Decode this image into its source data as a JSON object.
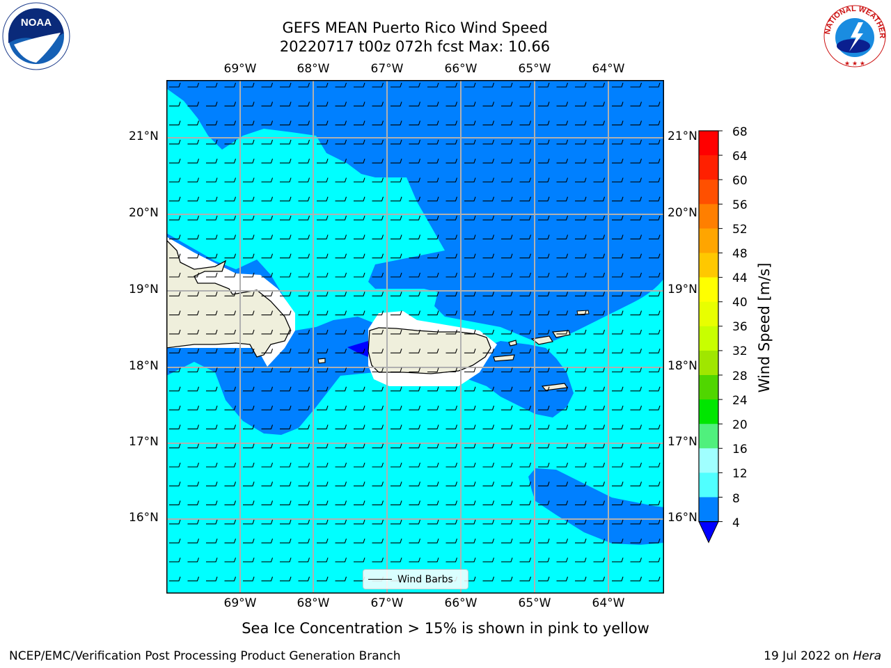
{
  "header": {
    "title_line1": "GEFS MEAN Puerto Rico Wind Speed",
    "title_line2": "20220717 t00z 072h fcst   Max: 10.66"
  },
  "map": {
    "lon_labels": [
      "69°W",
      "68°W",
      "67°W",
      "66°W",
      "65°W",
      "64°W"
    ],
    "lat_labels": [
      "21°N",
      "20°N",
      "19°N",
      "18°N",
      "17°N",
      "16°N"
    ],
    "legend_label": "Wind Barbs"
  },
  "colorbar": {
    "title": "Wind Speed [m/s]",
    "ticks": [
      "68",
      "64",
      "60",
      "56",
      "52",
      "48",
      "44",
      "40",
      "36",
      "32",
      "28",
      "24",
      "20",
      "16",
      "12",
      "8",
      "4"
    ],
    "colors": [
      "#ff0000",
      "#ff2000",
      "#ff5000",
      "#ff7f00",
      "#ffa500",
      "#ffc800",
      "#ffff00",
      "#e8ff00",
      "#c8ff00",
      "#a0e600",
      "#50d600",
      "#00e600",
      "#50f07d",
      "#a0ffff",
      "#50ffff",
      "#00ffff",
      "#0080ff"
    ],
    "under_color": "#0000ff"
  },
  "logos": {
    "left_text": "NOAA",
    "right_text": "NATIONAL WEATHER SERVICE"
  },
  "footer": {
    "subtitle": "Sea Ice Concentration > 15% is shown in pink to yellow",
    "left": "NCEP/EMC/Verification Post Processing Product Generation Branch",
    "right_date": "19 Jul 2022 on ",
    "right_host": "Hera"
  }
}
